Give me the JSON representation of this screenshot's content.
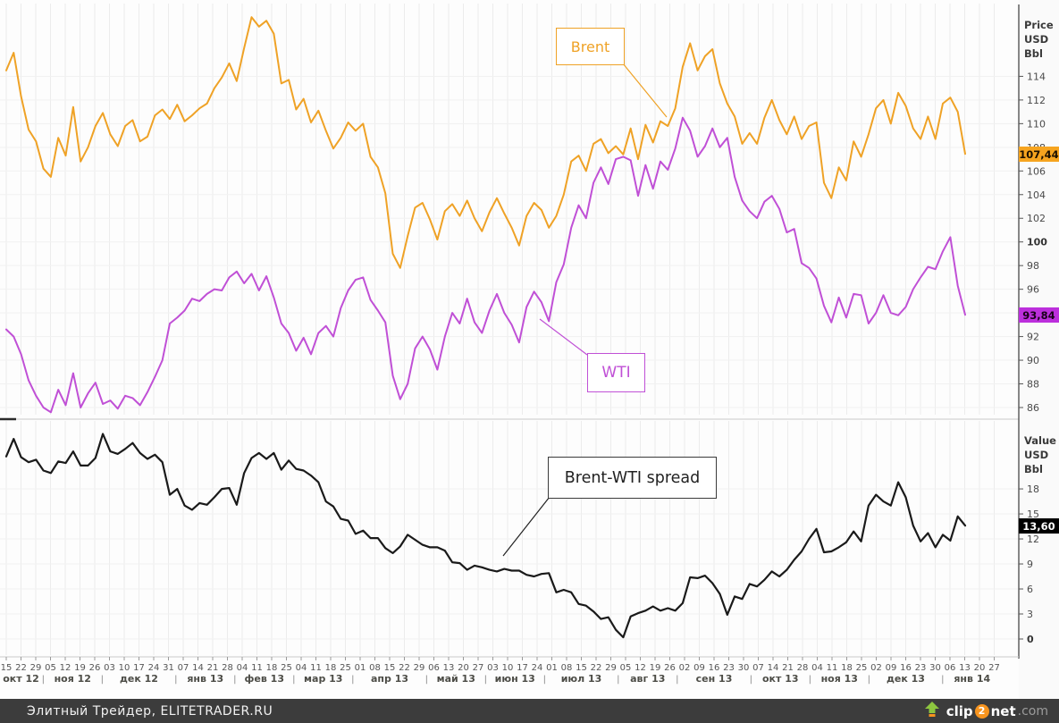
{
  "chart_data": [
    {
      "type": "line",
      "panel": "top",
      "ylabel": "Price USD Bbl",
      "ylabel_lines": [
        "Price",
        "USD",
        "Bbl"
      ],
      "ylim": [
        85.2,
        120.5
      ],
      "y_ticks": [
        86,
        88,
        90,
        92,
        94,
        96,
        98,
        100,
        102,
        104,
        106,
        108,
        110,
        112,
        114
      ],
      "y_bold_tick": 100,
      "grid": true,
      "legend_position": "annotation-boxes",
      "series": [
        {
          "name": "Brent",
          "color": "#EFA226",
          "badge_color": "#F6A41F",
          "last_label": "107,44",
          "last_value": 107.44,
          "values": [
            114.5,
            116.0,
            112.3,
            109.5,
            108.5,
            106.2,
            105.5,
            108.8,
            107.3,
            111.4,
            106.8,
            108.0,
            109.8,
            110.9,
            109.1,
            108.1,
            109.8,
            110.3,
            108.5,
            108.9,
            110.7,
            111.2,
            110.4,
            111.6,
            110.2,
            110.7,
            111.3,
            111.7,
            113.0,
            113.9,
            115.1,
            113.6,
            116.4,
            119.0,
            118.2,
            118.7,
            117.6,
            113.4,
            113.7,
            111.2,
            112.1,
            110.1,
            111.1,
            109.4,
            107.9,
            108.8,
            110.1,
            109.4,
            110.0,
            107.2,
            106.3,
            104.1,
            99.0,
            97.8,
            100.5,
            102.9,
            103.3,
            101.9,
            100.2,
            102.6,
            103.2,
            102.2,
            103.5,
            102.0,
            100.9,
            102.5,
            103.7,
            102.4,
            101.2,
            99.7,
            102.2,
            103.3,
            102.7,
            101.2,
            102.2,
            104.0,
            106.8,
            107.3,
            106.0,
            108.3,
            108.7,
            107.5,
            108.1,
            107.4,
            109.6,
            107.0,
            109.9,
            108.4,
            110.2,
            109.8,
            111.3,
            114.8,
            116.8,
            114.5,
            115.7,
            116.3,
            113.4,
            111.7,
            110.6,
            108.3,
            109.2,
            108.3,
            110.5,
            112.0,
            110.3,
            109.1,
            110.6,
            108.7,
            109.8,
            110.1,
            105.0,
            103.7,
            106.3,
            105.2,
            108.5,
            107.2,
            109.1,
            111.3,
            112.0,
            110.0,
            112.6,
            111.5,
            109.6,
            108.7,
            110.6,
            108.7,
            111.7,
            112.2,
            111.0,
            107.44
          ]
        },
        {
          "name": "WTI",
          "color": "#C050D6",
          "badge_color": "#BC2FDC",
          "last_label": "93,84",
          "last_value": 93.84,
          "values": [
            92.6,
            92.0,
            90.5,
            88.3,
            87.0,
            86.0,
            85.6,
            87.5,
            86.2,
            88.9,
            86.0,
            87.2,
            88.1,
            86.3,
            86.6,
            85.9,
            87.0,
            86.8,
            86.2,
            87.3,
            88.6,
            90.0,
            93.1,
            93.6,
            94.2,
            95.2,
            95.0,
            95.6,
            96.0,
            95.9,
            97.0,
            97.5,
            96.5,
            97.3,
            95.9,
            97.1,
            95.3,
            93.1,
            92.3,
            90.8,
            91.9,
            90.5,
            92.3,
            92.9,
            92.0,
            94.4,
            95.9,
            96.8,
            97.0,
            95.1,
            94.2,
            93.2,
            88.7,
            86.7,
            88.0,
            91.0,
            92.0,
            90.9,
            89.2,
            92.0,
            94.0,
            93.1,
            95.2,
            93.2,
            92.3,
            94.2,
            95.6,
            94.0,
            93.0,
            91.5,
            94.5,
            95.8,
            94.9,
            93.3,
            96.6,
            98.1,
            101.2,
            103.1,
            102.0,
            105.0,
            106.3,
            104.9,
            107.0,
            107.2,
            106.9,
            103.9,
            106.5,
            104.5,
            106.8,
            106.1,
            107.9,
            110.5,
            109.4,
            107.2,
            108.1,
            109.6,
            108.0,
            108.8,
            105.5,
            103.5,
            102.6,
            102.0,
            103.4,
            103.9,
            102.8,
            100.8,
            101.1,
            98.2,
            97.8,
            96.9,
            94.6,
            93.2,
            95.3,
            93.6,
            95.6,
            95.5,
            93.1,
            94.0,
            95.5,
            94.0,
            93.8,
            94.5,
            96.0,
            97.0,
            97.9,
            97.7,
            99.2,
            100.4,
            96.3,
            93.84
          ]
        }
      ]
    },
    {
      "type": "line",
      "panel": "bottom",
      "ylabel": "Value USD Bbl",
      "ylabel_lines": [
        "Value",
        "USD",
        "Bbl"
      ],
      "ylim": [
        -2.4,
        26.3
      ],
      "y_ticks": [
        0,
        3,
        6,
        9,
        12,
        15,
        18
      ],
      "y_bold_tick": 0,
      "grid": true,
      "series": [
        {
          "name": "Brent-WTI spread",
          "color": "#1a1a1a",
          "badge_color": "#000000",
          "last_label": "13,60",
          "last_value": 13.6,
          "values": [
            21.9,
            24.0,
            21.8,
            21.2,
            21.5,
            20.2,
            19.9,
            21.3,
            21.1,
            22.5,
            20.8,
            20.8,
            21.7,
            24.6,
            22.5,
            22.2,
            22.8,
            23.5,
            22.3,
            21.6,
            22.1,
            21.2,
            17.3,
            18.0,
            16.0,
            15.5,
            16.3,
            16.1,
            17.0,
            18.0,
            18.1,
            16.1,
            19.9,
            21.7,
            22.3,
            21.6,
            22.3,
            20.3,
            21.4,
            20.4,
            20.2,
            19.6,
            18.8,
            16.5,
            15.9,
            14.4,
            14.2,
            12.6,
            13.0,
            12.1,
            12.1,
            10.9,
            10.3,
            11.1,
            12.5,
            11.9,
            11.3,
            11.0,
            11.0,
            10.6,
            9.2,
            9.1,
            8.3,
            8.8,
            8.6,
            8.3,
            8.1,
            8.4,
            8.2,
            8.2,
            7.7,
            7.5,
            7.8,
            7.9,
            5.6,
            5.9,
            5.6,
            4.2,
            4.0,
            3.3,
            2.4,
            2.6,
            1.1,
            0.2,
            2.7,
            3.1,
            3.4,
            3.9,
            3.4,
            3.7,
            3.4,
            4.3,
            7.4,
            7.3,
            7.6,
            6.7,
            5.4,
            2.9,
            5.1,
            4.8,
            6.6,
            6.3,
            7.1,
            8.1,
            7.5,
            8.3,
            9.5,
            10.5,
            12.0,
            13.2,
            10.4,
            10.5,
            11.0,
            11.6,
            12.9,
            11.7,
            16.0,
            17.3,
            16.5,
            16.0,
            18.8,
            17.0,
            13.6,
            11.7,
            12.7,
            11.0,
            12.5,
            11.8,
            14.7,
            13.6
          ]
        }
      ]
    }
  ],
  "x_axis": {
    "week_labels": [
      "15",
      "22",
      "29",
      "05",
      "12",
      "19",
      "26",
      "03",
      "10",
      "17",
      "24",
      "31",
      "07",
      "14",
      "21",
      "28",
      "04",
      "11",
      "18",
      "25",
      "04",
      "11",
      "18",
      "25",
      "01",
      "08",
      "15",
      "22",
      "29",
      "06",
      "13",
      "20",
      "27",
      "03",
      "10",
      "17",
      "24",
      "01",
      "08",
      "15",
      "22",
      "29",
      "05",
      "12",
      "19",
      "26",
      "02",
      "09",
      "16",
      "23",
      "30",
      "07",
      "14",
      "21",
      "28",
      "04",
      "11",
      "18",
      "25",
      "02",
      "09",
      "16",
      "23",
      "30",
      "06",
      "13",
      "20",
      "27"
    ],
    "months": [
      {
        "label": "окт 12",
        "weeks": 3
      },
      {
        "label": "ноя 12",
        "weeks": 4
      },
      {
        "label": "дек 12",
        "weeks": 5
      },
      {
        "label": "янв 13",
        "weeks": 4
      },
      {
        "label": "фев 13",
        "weeks": 4
      },
      {
        "label": "мар 13",
        "weeks": 4
      },
      {
        "label": "апр 13",
        "weeks": 5
      },
      {
        "label": "май 13",
        "weeks": 4
      },
      {
        "label": "июн 13",
        "weeks": 4
      },
      {
        "label": "июл 13",
        "weeks": 5
      },
      {
        "label": "авг 13",
        "weeks": 4
      },
      {
        "label": "сен 13",
        "weeks": 5
      },
      {
        "label": "окт 13",
        "weeks": 4
      },
      {
        "label": "ноя 13",
        "weeks": 4
      },
      {
        "label": "дек 13",
        "weeks": 5
      },
      {
        "label": "янв 14",
        "weeks": 4
      }
    ],
    "month_separator": "|"
  },
  "annotations": {
    "brent": "Brent",
    "wti": "WTI",
    "spread": "Brent-WTI spread"
  },
  "footer": {
    "credit": "Элитный Трейдер, ELITETRADER.RU",
    "logo_clip": "clip",
    "logo_2": "2",
    "logo_net": "net",
    "logo_com": ".com"
  }
}
